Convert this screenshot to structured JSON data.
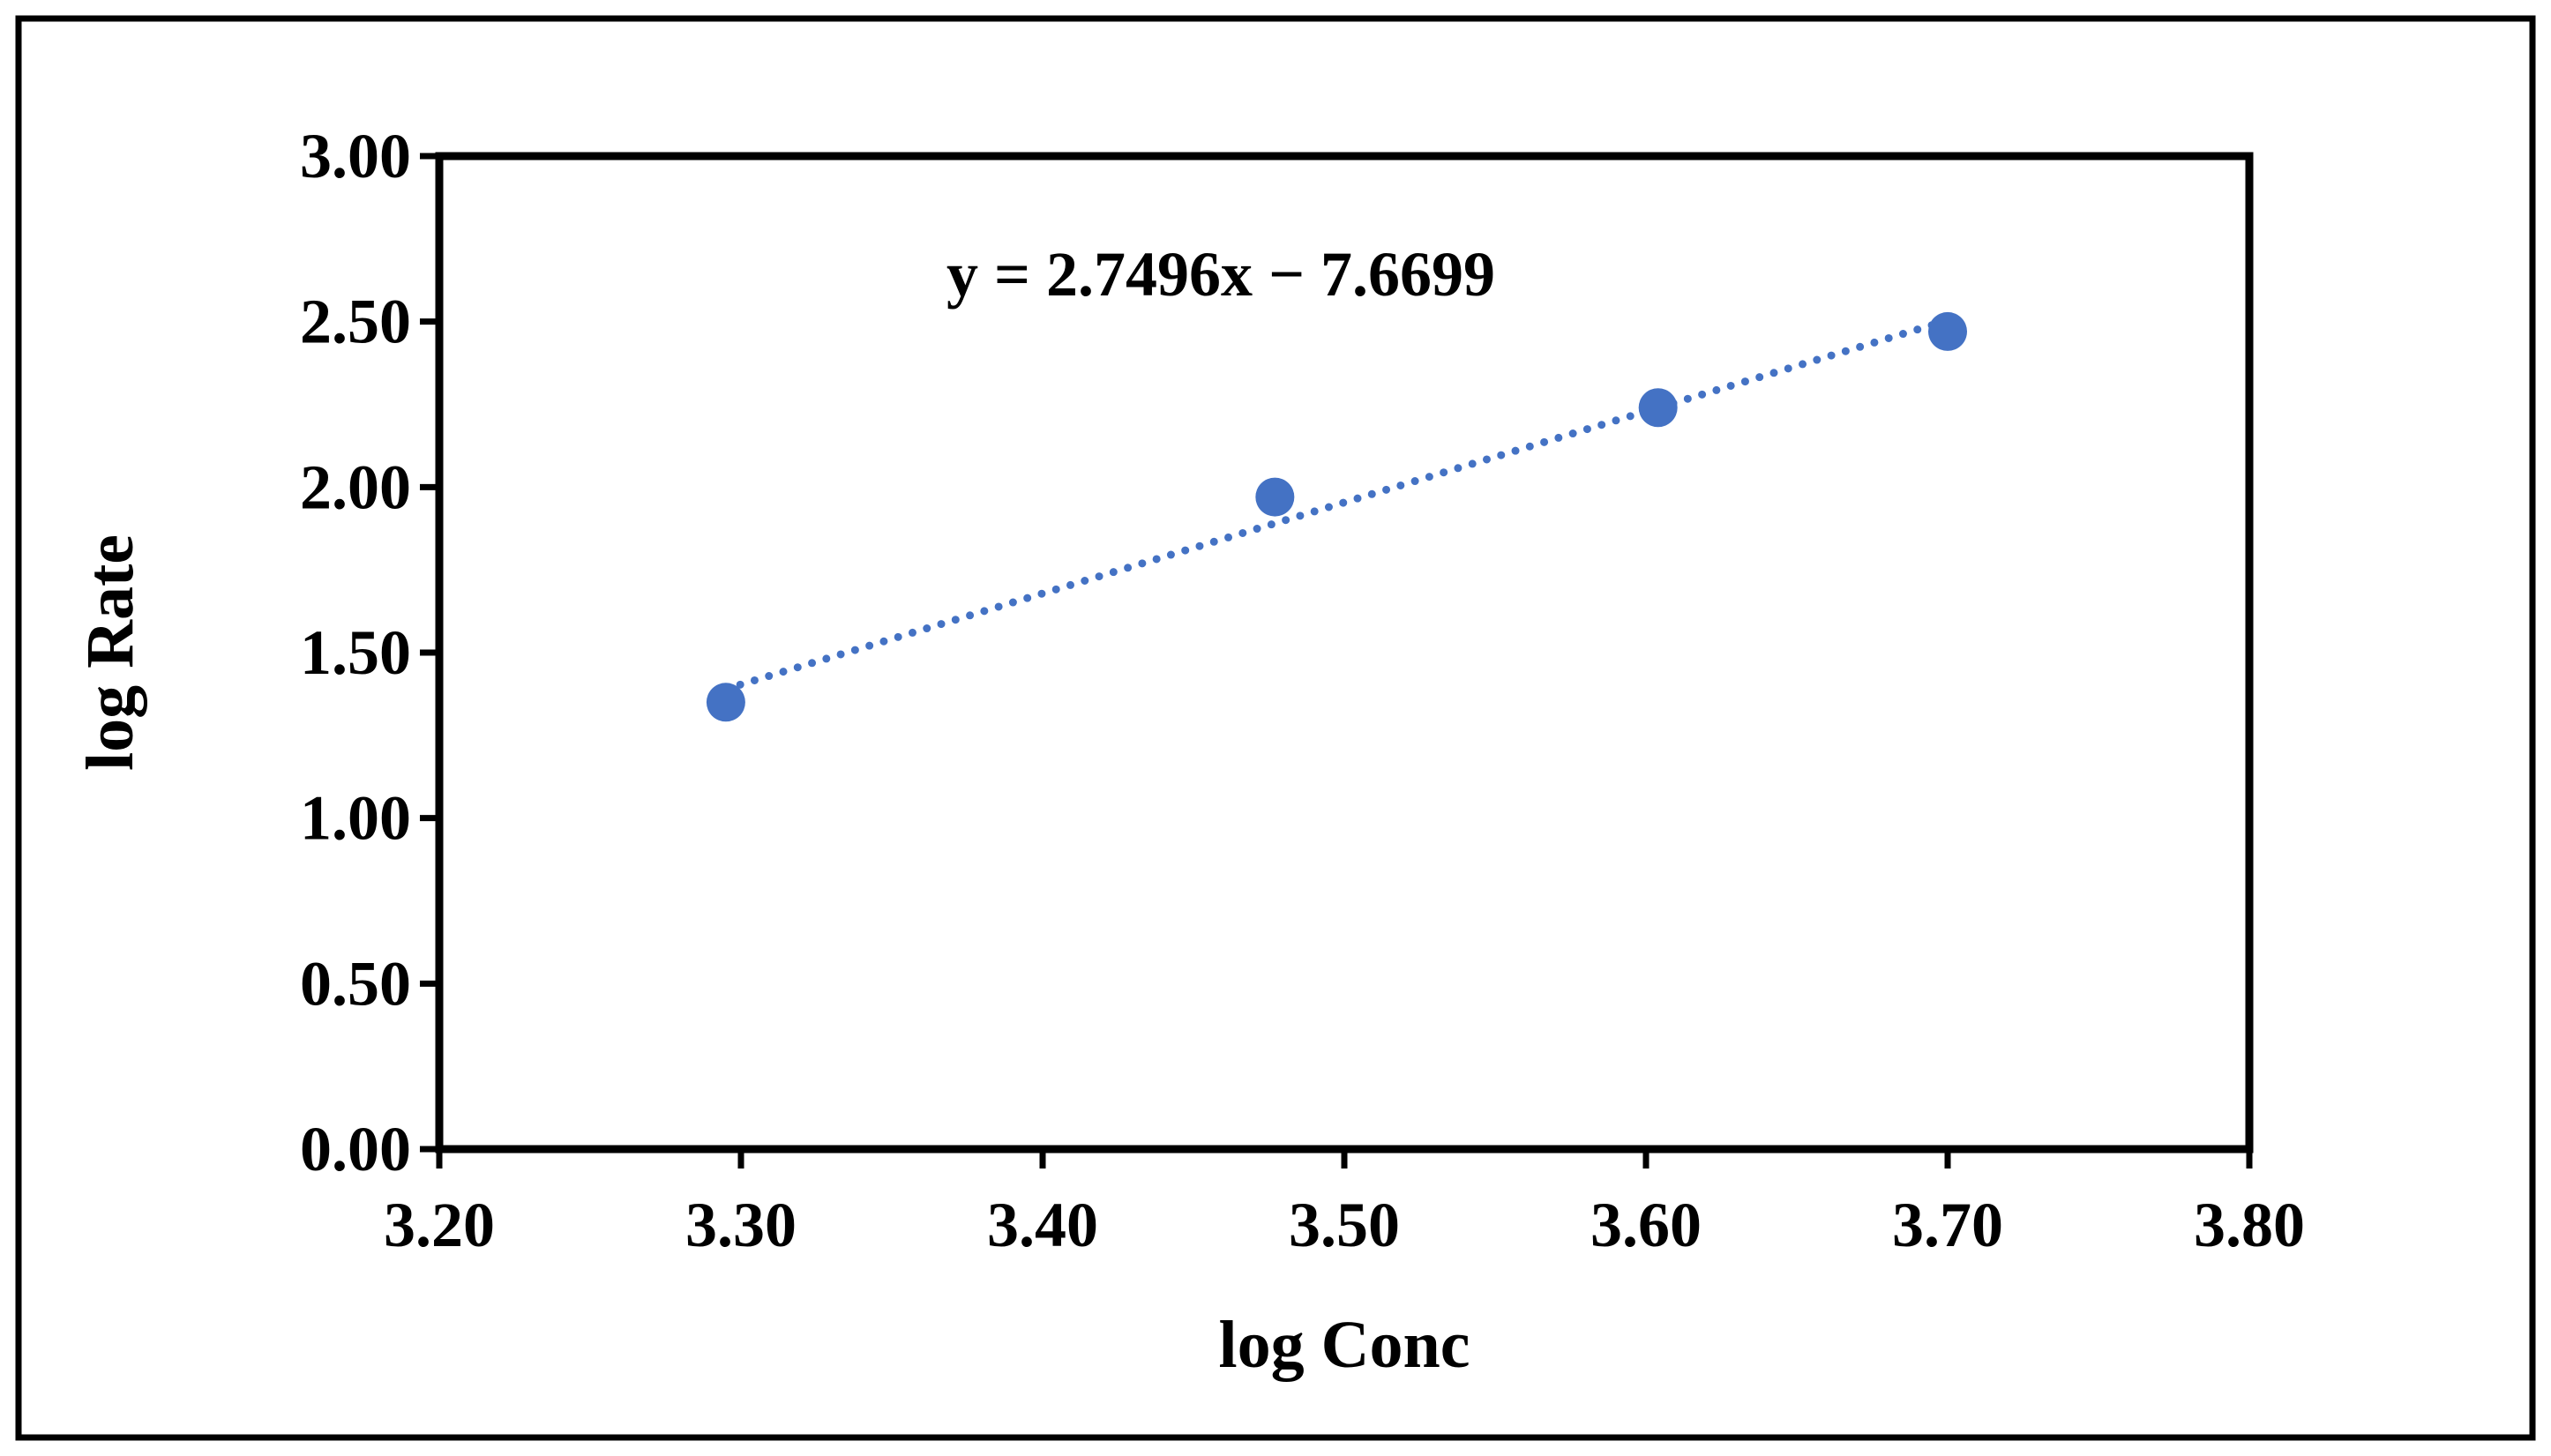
{
  "chart_data": {
    "type": "scatter",
    "title": "",
    "xlabel": "log Conc",
    "ylabel": "log Rate",
    "xlim": [
      3.2,
      3.8
    ],
    "ylim": [
      0.0,
      3.0
    ],
    "x_ticks": [
      "3.20",
      "3.30",
      "3.40",
      "3.50",
      "3.60",
      "3.70",
      "3.80"
    ],
    "y_ticks": [
      "0.00",
      "0.50",
      "1.00",
      "1.50",
      "2.00",
      "2.50",
      "3.00"
    ],
    "grid": false,
    "legend": "none",
    "series": [
      {
        "x": [
          3.295,
          3.477,
          3.604,
          3.7
        ],
        "y": [
          1.35,
          1.97,
          2.24,
          2.47
        ]
      }
    ],
    "trendline": {
      "type": "linear",
      "style": "dotted",
      "slope": 2.7496,
      "intercept": -7.6699,
      "x_range": [
        3.295,
        3.7
      ]
    },
    "annotations": [
      {
        "text": "y = 2.7496x − 7.6699"
      }
    ],
    "colors": {
      "marker": "#4472C4",
      "trendline": "#4472C4",
      "axis": "#000000",
      "frame": "#000000"
    }
  }
}
